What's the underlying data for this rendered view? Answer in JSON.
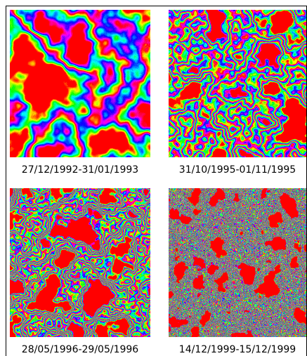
{
  "panels": [
    {
      "caption": "27/12/1992-31/01/1993"
    },
    {
      "caption": "31/10/1995-01/11/1995"
    },
    {
      "caption": "28/05/1996-29/05/1996"
    },
    {
      "caption": "14/12/1999-15/12/1999"
    }
  ]
}
